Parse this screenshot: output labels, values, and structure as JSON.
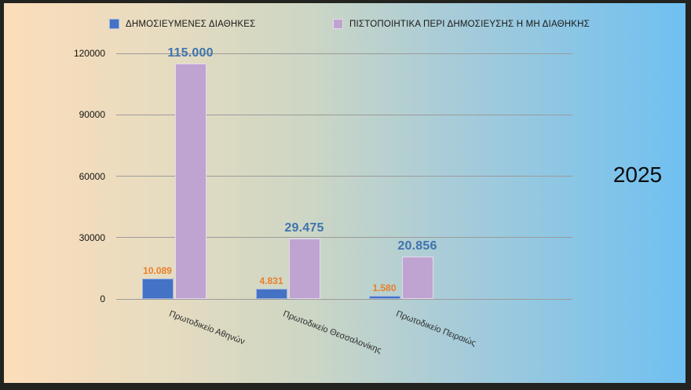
{
  "year_label": "2025",
  "legend": {
    "items": [
      {
        "label": "ΔΗΜΟΣΙΕΥΜΕΝΕΣ ΔΙΑΘΗΚΕΣ",
        "color": "#4472c4",
        "border": "#9db4e4"
      },
      {
        "label": "ΠΙΣΤΟΠΟΙΗΤΙΚΑ ΠΕΡΙ ΔΗΜΟΣΙΕΥΣΗΣ Η ΜΗ ΔΙΑΘΗΚΗΣ",
        "color": "#bfa3d0",
        "border": "#e4daee"
      }
    ]
  },
  "colors": {
    "frame": "#23231f",
    "background_left": "#fcddb9",
    "background_right": "#6fc0f1",
    "gridline": "#9b9b9b",
    "series_blue": "#4472c4",
    "series_blue_border": "#9db4e4",
    "series_purple": "#bfa3d0",
    "series_purple_border": "#e4daee",
    "label_orange": "#e8802b",
    "label_steel_blue": "#3f74ad",
    "axis_text": "#141414"
  },
  "chart_data": {
    "type": "bar",
    "title": "",
    "xlabel": "",
    "ylabel": "",
    "categories": [
      "Πρωτοδικείο Αθηνών",
      "Πρωτοδικείο Θεσσαλονίκης",
      "Πρωτοδικείο Πειραιώς"
    ],
    "series": [
      {
        "name": "ΔΗΜΟΣΙΕΥΜΕΝΕΣ ΔΙΑΘΗΚΕΣ",
        "values": [
          10089,
          4831,
          1580
        ],
        "value_labels": [
          "10.089",
          "4.831",
          "1.580"
        ],
        "fill": "#4472c4",
        "border": "#9db4e4",
        "label_color": "#e8802b"
      },
      {
        "name": "ΠΙΣΤΟΠΟΙΗΤΙΚΑ ΠΕΡΙ ΔΗΜΟΣΙΕΥΣΗΣ Η ΜΗ ΔΙΑΘΗΚΗΣ",
        "values": [
          115000,
          29475,
          20856
        ],
        "value_labels": [
          "115.000",
          "29.475",
          "20.856"
        ],
        "fill": "#bfa3d0",
        "border": "#e4daee",
        "label_color": "#3f74ad"
      }
    ],
    "yticks": [
      0,
      30000,
      60000,
      90000,
      120000
    ],
    "ytick_labels": [
      "0",
      "30000",
      "60000",
      "90000",
      "120000"
    ],
    "ylim": [
      0,
      120000
    ],
    "grid": true,
    "legend_position": "top",
    "annotations": [
      "2025"
    ]
  }
}
